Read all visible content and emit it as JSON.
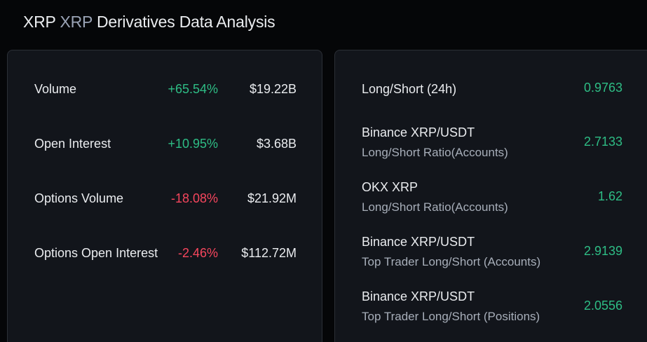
{
  "header": {
    "symbol": "XRP",
    "symbol_alt": "XRP",
    "title_rest": "Derivatives Data Analysis"
  },
  "left_panel": {
    "rows": [
      {
        "label": "Volume",
        "change": "+65.54%",
        "value": "$19.22B",
        "trend": "up"
      },
      {
        "label": "Open Interest",
        "change": "+10.95%",
        "value": "$3.68B",
        "trend": "up"
      },
      {
        "label": "Options Volume",
        "change": "-18.08%",
        "value": "$21.92M",
        "trend": "down"
      },
      {
        "label": "Options Open Interest",
        "change": "-2.46%",
        "value": "$112.72M",
        "trend": "down"
      }
    ]
  },
  "right_panel": {
    "rows": [
      {
        "label": "Long/Short (24h)",
        "sublabel": "",
        "value": "0.9763"
      },
      {
        "label": "Binance XRP/USDT",
        "sublabel": "Long/Short Ratio(Accounts)",
        "value": "2.7133"
      },
      {
        "label": "OKX XRP",
        "sublabel": "Long/Short Ratio(Accounts)",
        "value": "1.62"
      },
      {
        "label": "Binance XRP/USDT",
        "sublabel": "Top Trader Long/Short (Accounts)",
        "value": "2.9139"
      },
      {
        "label": "Binance XRP/USDT",
        "sublabel": "Top Trader Long/Short (Positions)",
        "value": "2.0556"
      }
    ]
  },
  "colors": {
    "positive": "#2ebd85",
    "negative": "#f6465d",
    "background": "#050608",
    "card": "#12151b"
  }
}
